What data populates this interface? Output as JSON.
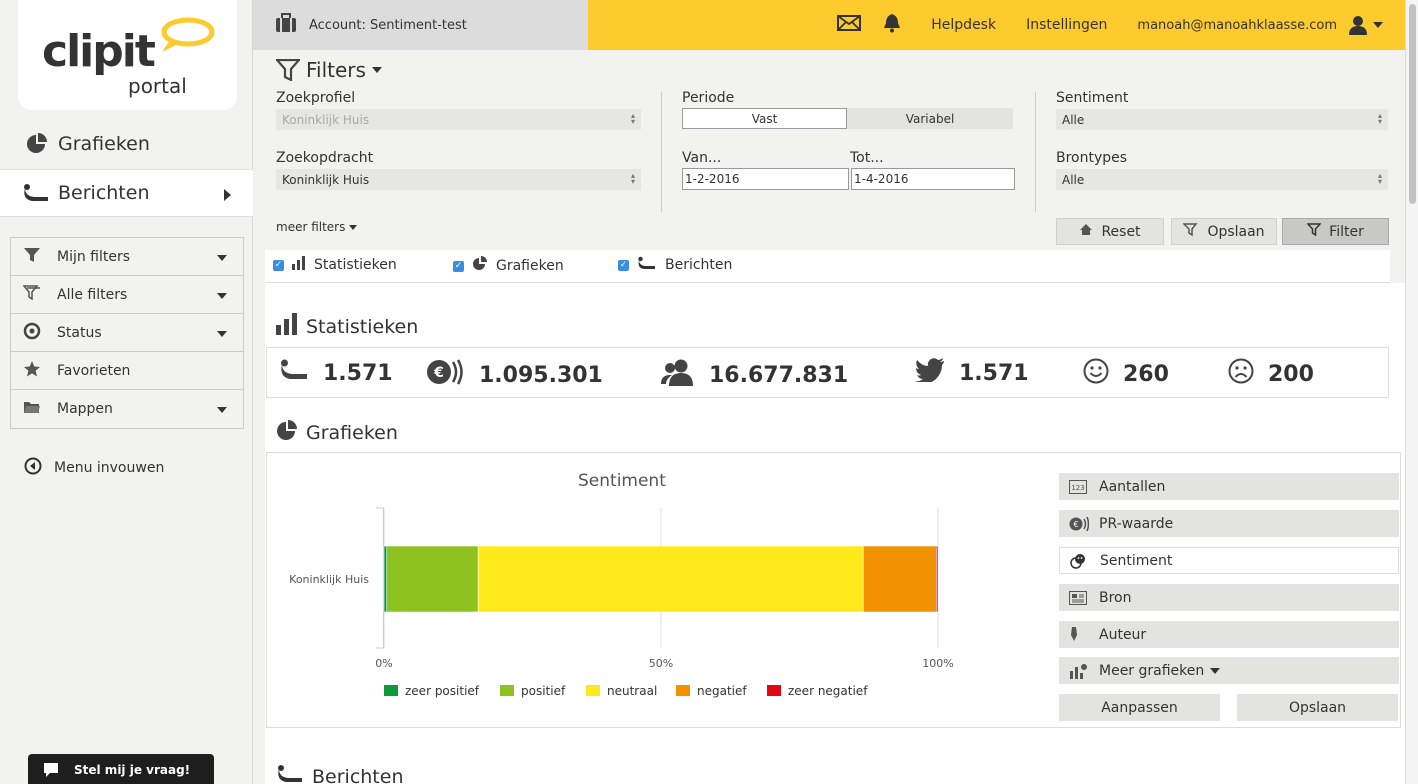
{
  "app": {
    "logo_main": "clipit",
    "logo_sub": "portal"
  },
  "sidebar": {
    "main_items": [
      {
        "label": "Grafieken",
        "icon": "pie-chart-icon"
      },
      {
        "label": "Berichten",
        "icon": "speech-bubble-icon"
      }
    ],
    "filter_items": [
      {
        "label": "Mijn filters",
        "icon": "filter-icon"
      },
      {
        "label": "Alle filters",
        "icon": "filters-icon"
      },
      {
        "label": "Status",
        "icon": "target-icon"
      },
      {
        "label": "Favorieten",
        "icon": "star-icon"
      },
      {
        "label": "Mappen",
        "icon": "folder-icon"
      }
    ],
    "collapse_label": "Menu invouwen",
    "chat_label": "Stel mij je vraag!"
  },
  "topbar": {
    "account_label": "Account: Sentiment-test",
    "helpdesk": "Helpdesk",
    "settings": "Instellingen",
    "user_email": "manoah@manoahklaasse.com"
  },
  "filters": {
    "title": "Filters",
    "zoekprofiel_label": "Zoekprofiel",
    "zoekprofiel_value": "Koninklijk Huis",
    "zoekopdracht_label": "Zoekopdracht",
    "zoekopdracht_value": "Koninklijk Huis",
    "periode_label": "Periode",
    "periode_vast": "Vast",
    "periode_variabel": "Variabel",
    "van_label": "Van...",
    "van_value": "1-2-2016",
    "tot_label": "Tot...",
    "tot_value": "1-4-2016",
    "sentiment_label": "Sentiment",
    "sentiment_value": "Alle",
    "brontypes_label": "Brontypes",
    "brontypes_value": "Alle",
    "meer_filters": "meer filters",
    "reset": "Reset",
    "opslaan": "Opslaan",
    "filter": "Filter"
  },
  "toggles": {
    "statistieken": "Statistieken",
    "grafieken": "Grafieken",
    "berichten": "Berichten"
  },
  "sections": {
    "statistieken": "Statistieken",
    "grafieken": "Grafieken",
    "berichten": "Berichten"
  },
  "stats": [
    {
      "icon": "speech-bubble-icon",
      "value": "1.571"
    },
    {
      "icon": "euro-reach-icon",
      "value": "1.095.301"
    },
    {
      "icon": "users-icon",
      "value": "16.677.831"
    },
    {
      "icon": "twitter-icon",
      "value": "1.571"
    },
    {
      "icon": "smiley-happy-icon",
      "value": "260"
    },
    {
      "icon": "smiley-sad-icon",
      "value": "200"
    }
  ],
  "chart_panel": {
    "buttons": [
      "Aantallen",
      "PR-waarde",
      "Sentiment",
      "Bron",
      "Auteur",
      "Meer grafieken"
    ],
    "active": "Sentiment",
    "aanpassen": "Aanpassen",
    "opslaan": "Opslaan"
  },
  "colors": {
    "accent": "#fecb2f",
    "zeer_positief": "#0c9a3c",
    "positief": "#8dc21f",
    "neutraal": "#feea1b",
    "negatief": "#f39200",
    "zeer_negatief": "#e30613"
  },
  "chart_data": {
    "type": "bar",
    "orientation": "horizontal",
    "stacked": "percent",
    "title": "Sentiment",
    "categories": [
      "Koninklijk Huis"
    ],
    "series": [
      {
        "name": "zeer positief",
        "values": [
          0.5
        ]
      },
      {
        "name": "positief",
        "values": [
          16.5
        ]
      },
      {
        "name": "neutraal",
        "values": [
          69.5
        ]
      },
      {
        "name": "negatief",
        "values": [
          13.2
        ]
      },
      {
        "name": "zeer negatief",
        "values": [
          0.3
        ]
      }
    ],
    "xlim": [
      0,
      100
    ],
    "xticks": [
      "0%",
      "50%",
      "100%"
    ],
    "legend": "bottom",
    "grid": true
  }
}
